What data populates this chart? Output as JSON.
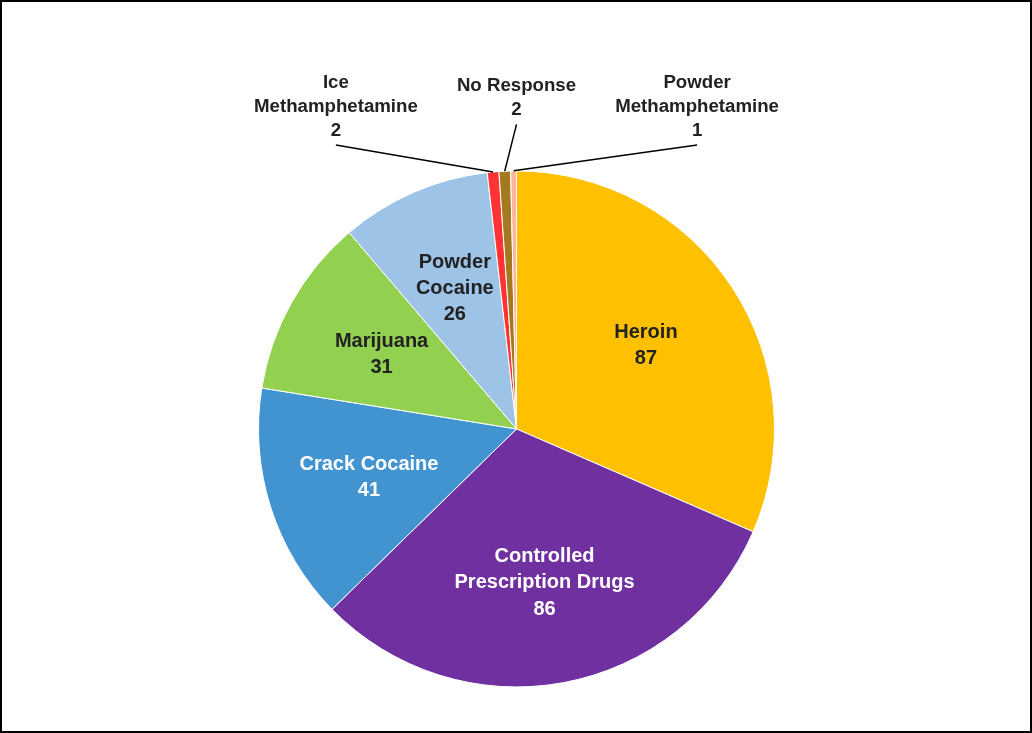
{
  "chart_data": {
    "type": "pie",
    "categories": [
      "Heroin",
      "Controlled Prescription Drugs",
      "Crack Cocaine",
      "Marijuana",
      "Powder Cocaine",
      "Ice Methamphetamine",
      "No Response",
      "Powder Methamphetamine"
    ],
    "values": [
      87,
      86,
      41,
      31,
      26,
      2,
      2,
      1
    ],
    "colors": [
      "#ffc000",
      "#7030a0",
      "#4294d0",
      "#92d050",
      "#9dc3e6",
      "#ff3333",
      "#a57a1e",
      "#ffb3a0"
    ],
    "data_labels": true
  }
}
